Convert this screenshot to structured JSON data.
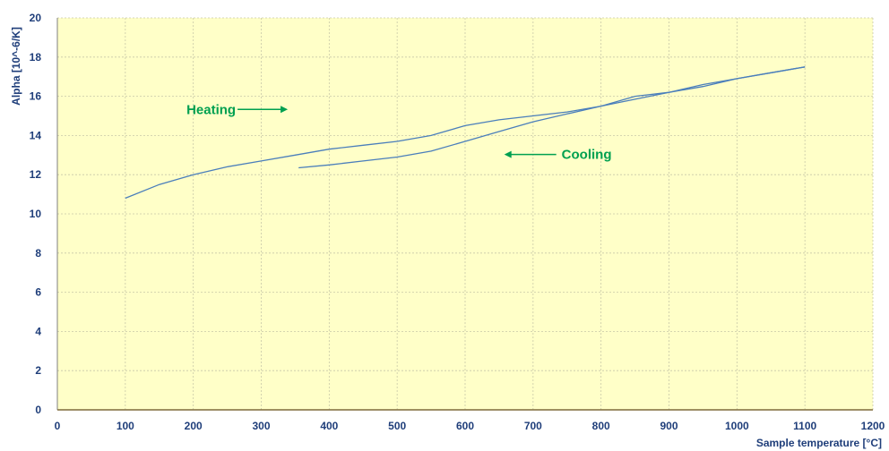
{
  "chart_data": {
    "type": "line",
    "xlabel": "Sample temperature [°C]",
    "ylabel": "Alpha [10^-6/K]",
    "xlim": [
      0,
      1200
    ],
    "ylim": [
      0,
      20
    ],
    "x_ticks": [
      0,
      100,
      200,
      300,
      400,
      500,
      600,
      700,
      800,
      900,
      1000,
      1100,
      1200
    ],
    "y_ticks": [
      0,
      2,
      4,
      6,
      8,
      10,
      12,
      14,
      16,
      18,
      20
    ],
    "grid": true,
    "series": [
      {
        "x": [
          100,
          150,
          200,
          250,
          300,
          350,
          400,
          450,
          500,
          550,
          600,
          650,
          700,
          750,
          800,
          850,
          900,
          950,
          1000,
          1050,
          1100
        ],
        "y": [
          10.8,
          11.5,
          12.0,
          12.4,
          12.7,
          13.0,
          13.3,
          13.5,
          13.7,
          14.0,
          14.5,
          14.8,
          15.0,
          15.2,
          15.5,
          16.0,
          16.2,
          16.5,
          16.9,
          17.2,
          17.5
        ]
      },
      {
        "x": [
          1100,
          1050,
          1000,
          950,
          900,
          850,
          800,
          750,
          700,
          650,
          600,
          550,
          500,
          450,
          400,
          355
        ],
        "y": [
          17.5,
          17.2,
          16.9,
          16.6,
          16.2,
          15.85,
          15.5,
          15.1,
          14.7,
          14.2,
          13.7,
          13.2,
          12.9,
          12.7,
          12.5,
          12.35
        ]
      }
    ],
    "annotations": [
      {
        "text": "Heating",
        "arrow": "right",
        "x": 190,
        "y": 15.1
      },
      {
        "text": "Cooling",
        "arrow": "left",
        "x": 742,
        "y": 12.8
      }
    ],
    "colors": {
      "plot_background": "#FFFFC8",
      "line": "#4A7EBB",
      "annotation": "#00A050",
      "axis_text": "#1F3E7A",
      "x_axis_line": "#7F6A3A",
      "grid": "#C8C8A8"
    }
  }
}
